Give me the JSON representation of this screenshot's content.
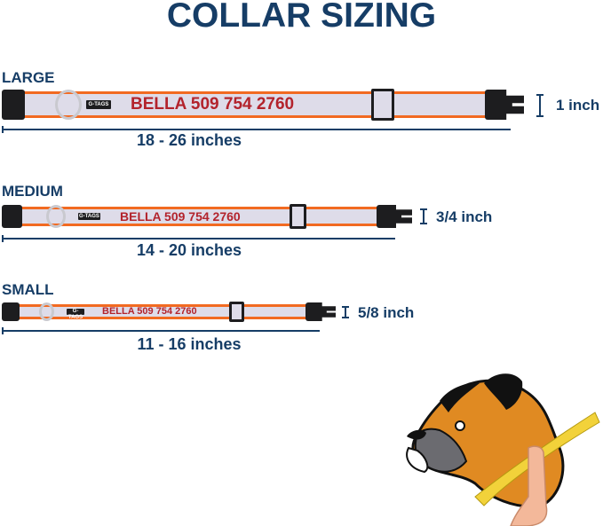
{
  "title": "COLLAR SIZING",
  "colors": {
    "navy": "#163d66",
    "strap_border": "#f26a21",
    "strap_fill": "#dedce9",
    "name_text": "#b3232c"
  },
  "sizes": [
    {
      "label": "LARGE",
      "tag": "G-TAGS",
      "engraving": "BELLA 509 754 2760",
      "width": "1 inch",
      "range": "18 - 26 inches"
    },
    {
      "label": "MEDIUM",
      "tag": "G-TAGS",
      "engraving": "BELLA 509 754 2760",
      "width": "3/4 inch",
      "range": "14 - 20 inches"
    },
    {
      "label": "SMALL",
      "tag": "G-TAGS",
      "engraving": "BELLA 509 754 2760",
      "width": "5/8 inch",
      "range": "11 - 16 inches"
    }
  ],
  "illustration": {
    "subject": "boxer-dog-neck-measurement"
  }
}
